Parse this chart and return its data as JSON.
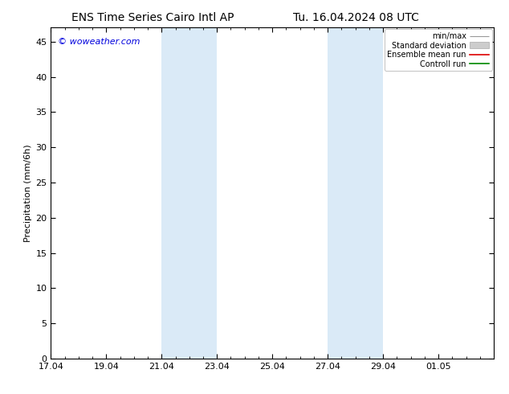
{
  "title_left": "ENS Time Series Cairo Intl AP",
  "title_right": "Tu. 16.04.2024 08 UTC",
  "ylabel": "Precipitation (mm/6h)",
  "watermark": "© woweather.com",
  "watermark_color": "#0000dd",
  "background_color": "#ffffff",
  "plot_bg_color": "#ffffff",
  "ylim": [
    0,
    47
  ],
  "yticks": [
    0,
    5,
    10,
    15,
    20,
    25,
    30,
    35,
    40,
    45
  ],
  "xmin": 0,
  "xmax": 16,
  "x_tick_labels": [
    "17.04",
    "19.04",
    "21.04",
    "23.04",
    "25.04",
    "27.04",
    "29.04",
    "01.05"
  ],
  "x_tick_positions": [
    0,
    2,
    4,
    6,
    8,
    10,
    12,
    14
  ],
  "shaded_regions": [
    {
      "xstart": 4,
      "xend": 6
    },
    {
      "xstart": 10,
      "xend": 12
    }
  ],
  "shaded_color": "#daeaf7",
  "legend_labels": [
    "min/max",
    "Standard deviation",
    "Ensemble mean run",
    "Controll run"
  ],
  "legend_line_color_minmax": "#999999",
  "legend_fill_color_std": "#cccccc",
  "legend_line_color_ens": "#dd0000",
  "legend_line_color_ctrl": "#008800",
  "tick_color": "#000000",
  "spine_color": "#000000",
  "title_fontsize": 10,
  "axis_fontsize": 8,
  "ylabel_fontsize": 8,
  "watermark_fontsize": 8,
  "legend_fontsize": 7
}
